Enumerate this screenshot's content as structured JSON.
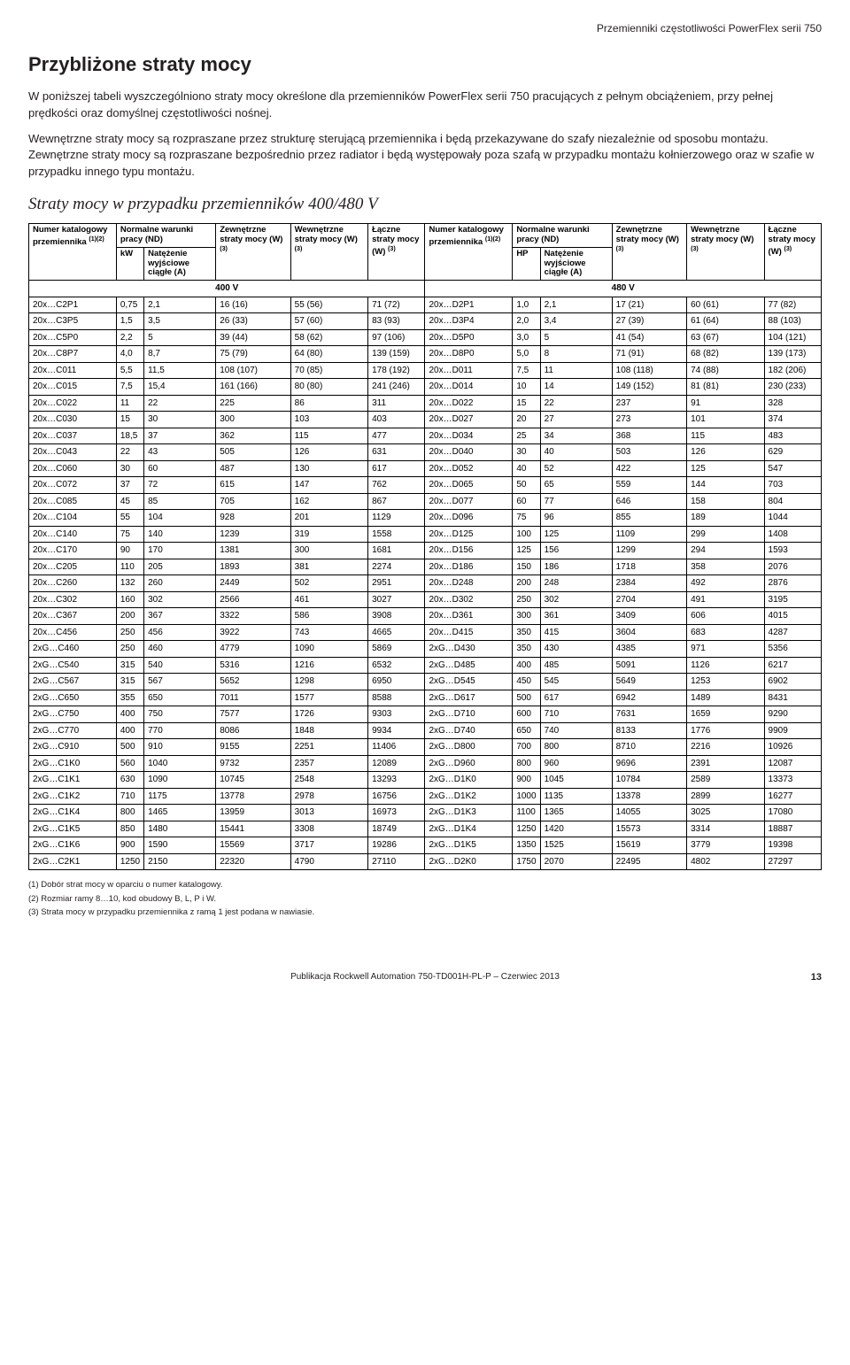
{
  "doc_header": "Przemienniki częstotliwości PowerFlex serii 750",
  "title": "Przybliżone straty mocy",
  "para1": "W poniższej tabeli wyszczególniono straty mocy określone dla przemienników PowerFlex serii 750 pracujących z pełnym obciążeniem, przy pełnej prędkości oraz domyślnej częstotliwości nośnej.",
  "para2": "Wewnętrzne straty mocy są rozpraszane przez strukturę sterującą przemiennika i będą przekazywane do szafy niezależnie od sposobu montażu. Zewnętrzne straty mocy są rozpraszane bezpośrednio przez radiator i będą występowały poza szafą w przypadku montażu kołnierzowego oraz w szafie w przypadku innego typu montażu.",
  "section_title": "Straty mocy w przypadku przemienników 400/480 V",
  "table": {
    "headers_row1": {
      "cat_no_l": "Numer katalogowy przemiennika",
      "cat_no_sup": "(1)(2)",
      "normal_cond": "Normalne warunki pracy (ND)",
      "ext_loss": "Zewnętrzne straty mocy (W)",
      "int_loss": "Wewnętrzne straty mocy (W)",
      "total_loss": "Łączne straty mocy (W)",
      "total_loss_r": "Łączne straty mocy (W)",
      "sup3": "(3)"
    },
    "headers_row2": {
      "kw": "kW",
      "amps": "Natężenie wyjściowe ciągłe (A)",
      "hp": "HP"
    },
    "voltage_left": "400 V",
    "voltage_right": "480 V",
    "rows": [
      [
        "20x…C2P1",
        "0,75",
        "2,1",
        "16 (16)",
        "55 (56)",
        "71 (72)",
        "20x…D2P1",
        "1,0",
        "2,1",
        "17 (21)",
        "60 (61)",
        "77 (82)"
      ],
      [
        "20x…C3P5",
        "1,5",
        "3,5",
        "26 (33)",
        "57 (60)",
        "83 (93)",
        "20x…D3P4",
        "2,0",
        "3,4",
        "27 (39)",
        "61 (64)",
        "88 (103)"
      ],
      [
        "20x…C5P0",
        "2,2",
        "5",
        "39 (44)",
        "58 (62)",
        "97 (106)",
        "20x…D5P0",
        "3,0",
        "5",
        "41 (54)",
        "63 (67)",
        "104 (121)"
      ],
      [
        "20x…C8P7",
        "4,0",
        "8,7",
        "75 (79)",
        "64 (80)",
        "139 (159)",
        "20x…D8P0",
        "5,0",
        "8",
        "71 (91)",
        "68 (82)",
        "139 (173)"
      ],
      [
        "20x…C011",
        "5,5",
        "11,5",
        "108 (107)",
        "70 (85)",
        "178 (192)",
        "20x…D011",
        "7,5",
        "11",
        "108 (118)",
        "74 (88)",
        "182 (206)"
      ],
      [
        "20x…C015",
        "7,5",
        "15,4",
        "161 (166)",
        "80 (80)",
        "241 (246)",
        "20x…D014",
        "10",
        "14",
        "149 (152)",
        "81 (81)",
        "230 (233)"
      ],
      [
        "20x…C022",
        "11",
        "22",
        "225",
        "86",
        "311",
        "20x…D022",
        "15",
        "22",
        "237",
        "91",
        "328"
      ],
      [
        "20x…C030",
        "15",
        "30",
        "300",
        "103",
        "403",
        "20x…D027",
        "20",
        "27",
        "273",
        "101",
        "374"
      ],
      [
        "20x…C037",
        "18,5",
        "37",
        "362",
        "115",
        "477",
        "20x…D034",
        "25",
        "34",
        "368",
        "115",
        "483"
      ],
      [
        "20x…C043",
        "22",
        "43",
        "505",
        "126",
        "631",
        "20x…D040",
        "30",
        "40",
        "503",
        "126",
        "629"
      ],
      [
        "20x…C060",
        "30",
        "60",
        "487",
        "130",
        "617",
        "20x…D052",
        "40",
        "52",
        "422",
        "125",
        "547"
      ],
      [
        "20x…C072",
        "37",
        "72",
        "615",
        "147",
        "762",
        "20x…D065",
        "50",
        "65",
        "559",
        "144",
        "703"
      ],
      [
        "20x…C085",
        "45",
        "85",
        "705",
        "162",
        "867",
        "20x…D077",
        "60",
        "77",
        "646",
        "158",
        "804"
      ],
      [
        "20x…C104",
        "55",
        "104",
        "928",
        "201",
        "1129",
        "20x…D096",
        "75",
        "96",
        "855",
        "189",
        "1044"
      ],
      [
        "20x…C140",
        "75",
        "140",
        "1239",
        "319",
        "1558",
        "20x…D125",
        "100",
        "125",
        "1109",
        "299",
        "1408"
      ],
      [
        "20x…C170",
        "90",
        "170",
        "1381",
        "300",
        "1681",
        "20x…D156",
        "125",
        "156",
        "1299",
        "294",
        "1593"
      ],
      [
        "20x…C205",
        "110",
        "205",
        "1893",
        "381",
        "2274",
        "20x…D186",
        "150",
        "186",
        "1718",
        "358",
        "2076"
      ],
      [
        "20x…C260",
        "132",
        "260",
        "2449",
        "502",
        "2951",
        "20x…D248",
        "200",
        "248",
        "2384",
        "492",
        "2876"
      ],
      [
        "20x…C302",
        "160",
        "302",
        "2566",
        "461",
        "3027",
        "20x…D302",
        "250",
        "302",
        "2704",
        "491",
        "3195"
      ],
      [
        "20x…C367",
        "200",
        "367",
        "3322",
        "586",
        "3908",
        "20x…D361",
        "300",
        "361",
        "3409",
        "606",
        "4015"
      ],
      [
        "20x…C456",
        "250",
        "456",
        "3922",
        "743",
        "4665",
        "20x…D415",
        "350",
        "415",
        "3604",
        "683",
        "4287"
      ],
      [
        "2xG…C460",
        "250",
        "460",
        "4779",
        "1090",
        "5869",
        "2xG…D430",
        "350",
        "430",
        "4385",
        "971",
        "5356"
      ],
      [
        "2xG…C540",
        "315",
        "540",
        "5316",
        "1216",
        "6532",
        "2xG…D485",
        "400",
        "485",
        "5091",
        "1126",
        "6217"
      ],
      [
        "2xG…C567",
        "315",
        "567",
        "5652",
        "1298",
        "6950",
        "2xG…D545",
        "450",
        "545",
        "5649",
        "1253",
        "6902"
      ],
      [
        "2xG…C650",
        "355",
        "650",
        "7011",
        "1577",
        "8588",
        "2xG…D617",
        "500",
        "617",
        "6942",
        "1489",
        "8431"
      ],
      [
        "2xG…C750",
        "400",
        "750",
        "7577",
        "1726",
        "9303",
        "2xG…D710",
        "600",
        "710",
        "7631",
        "1659",
        "9290"
      ],
      [
        "2xG…C770",
        "400",
        "770",
        "8086",
        "1848",
        "9934",
        "2xG…D740",
        "650",
        "740",
        "8133",
        "1776",
        "9909"
      ],
      [
        "2xG…C910",
        "500",
        "910",
        "9155",
        "2251",
        "11406",
        "2xG…D800",
        "700",
        "800",
        "8710",
        "2216",
        "10926"
      ],
      [
        "2xG…C1K0",
        "560",
        "1040",
        "9732",
        "2357",
        "12089",
        "2xG…D960",
        "800",
        "960",
        "9696",
        "2391",
        "12087"
      ],
      [
        "2xG…C1K1",
        "630",
        "1090",
        "10745",
        "2548",
        "13293",
        "2xG…D1K0",
        "900",
        "1045",
        "10784",
        "2589",
        "13373"
      ],
      [
        "2xG…C1K2",
        "710",
        "1175",
        "13778",
        "2978",
        "16756",
        "2xG…D1K2",
        "1000",
        "1135",
        "13378",
        "2899",
        "16277"
      ],
      [
        "2xG…C1K4",
        "800",
        "1465",
        "13959",
        "3013",
        "16973",
        "2xG…D1K3",
        "1100",
        "1365",
        "14055",
        "3025",
        "17080"
      ],
      [
        "2xG…C1K5",
        "850",
        "1480",
        "15441",
        "3308",
        "18749",
        "2xG…D1K4",
        "1250",
        "1420",
        "15573",
        "3314",
        "18887"
      ],
      [
        "2xG…C1K6",
        "900",
        "1590",
        "15569",
        "3717",
        "19286",
        "2xG…D1K5",
        "1350",
        "1525",
        "15619",
        "3779",
        "19398"
      ],
      [
        "2xG…C2K1",
        "1250",
        "2150",
        "22320",
        "4790",
        "27110",
        "2xG…D2K0",
        "1750",
        "2070",
        "22495",
        "4802",
        "27297"
      ]
    ]
  },
  "footnotes": [
    "(1)  Dobór strat mocy w oparciu o numer katalogowy.",
    "(2)  Rozmiar ramy 8…10, kod obudowy B, L, P i W.",
    "(3)  Strata mocy w przypadku przemiennika z ramą 1 jest podana w nawiasie."
  ],
  "footer_pub": "Publikacja Rockwell Automation 750-TD001H-PL-P – Czerwiec 2013",
  "footer_page": "13"
}
